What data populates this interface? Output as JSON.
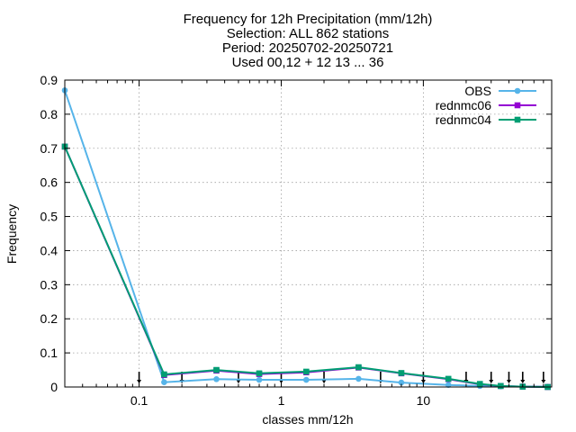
{
  "chart_data": {
    "type": "line",
    "title_lines": [
      "Frequency  for 12h Precipitation (mm/12h)",
      "Selection: ALL    862 stations",
      "Period: 20250702-20250721",
      "Used 00,12 + 12 13 ... 36"
    ],
    "xlabel": "classes mm/12h",
    "ylabel": "Frequency",
    "xscale": "log",
    "xlim": [
      0.03,
      80
    ],
    "ylim": [
      0,
      0.9
    ],
    "xticks": [
      0.1,
      1,
      10
    ],
    "xtick_labels": [
      "0.1",
      "1",
      "10"
    ],
    "yticks": [
      0,
      0.1,
      0.2,
      0.3,
      0.4,
      0.5,
      0.6,
      0.7,
      0.8,
      0.9
    ],
    "ytick_labels": [
      "0",
      "0.1",
      "0.2",
      "0.3",
      "0.4",
      "0.5",
      "0.6",
      "0.7",
      "0.8",
      "0.9"
    ],
    "grid": true,
    "legend_position": "top-right",
    "x": [
      0.03,
      0.15,
      0.35,
      0.7,
      1.5,
      3.5,
      7,
      15,
      25,
      35,
      50,
      75
    ],
    "series": [
      {
        "name": "OBS",
        "color": "#56b4e9",
        "marker": "circle-filled",
        "values": [
          0.87,
          0.014,
          0.023,
          0.021,
          0.021,
          0.024,
          0.013,
          0.006,
          0.003,
          0.002,
          0.001,
          0.001
        ]
      },
      {
        "name": "rednmc06",
        "color": "#9400d3",
        "marker": "square-filled",
        "values": [
          0.705,
          0.035,
          0.048,
          0.038,
          0.043,
          0.057,
          0.04,
          0.023,
          0.008,
          0.003,
          0.001,
          0.0
        ]
      },
      {
        "name": "rednmc04",
        "color": "#009e73",
        "marker": "square-filled",
        "values": [
          0.705,
          0.037,
          0.05,
          0.04,
          0.045,
          0.058,
          0.041,
          0.024,
          0.009,
          0.003,
          0.001,
          0.0
        ]
      }
    ],
    "class_boundaries": [
      0.1,
      0.2,
      0.5,
      1,
      2,
      5,
      10,
      20,
      30,
      40,
      50,
      70
    ]
  }
}
